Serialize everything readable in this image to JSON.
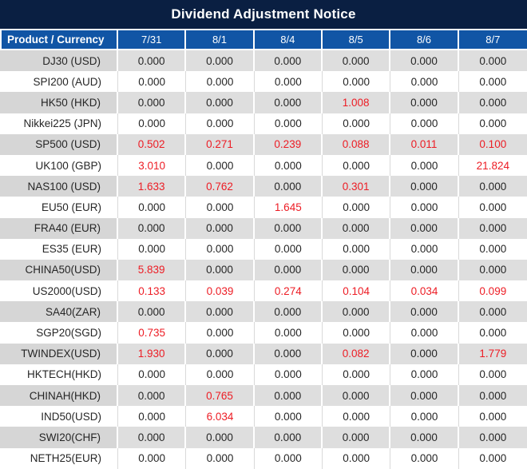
{
  "title": "Dividend Adjustment Notice",
  "colors": {
    "title_bar_bg": "#0a1f42",
    "header_bg": "#1155a5",
    "row_gray": "#dedede",
    "row_gray_product": "#d6d6d6",
    "row_white": "#ffffff",
    "text": "#262626",
    "highlight_red": "#ed1c24"
  },
  "table": {
    "header": [
      "Product / Currency",
      "7/31",
      "8/1",
      "8/4",
      "8/5",
      "8/6",
      "8/7"
    ],
    "zero_value": "0.000",
    "rows": [
      {
        "product": "DJ30 (USD)",
        "values": [
          "0.000",
          "0.000",
          "0.000",
          "0.000",
          "0.000",
          "0.000"
        ]
      },
      {
        "product": "SPI200 (AUD)",
        "values": [
          "0.000",
          "0.000",
          "0.000",
          "0.000",
          "0.000",
          "0.000"
        ]
      },
      {
        "product": "HK50 (HKD)",
        "values": [
          "0.000",
          "0.000",
          "0.000",
          "1.008",
          "0.000",
          "0.000"
        ]
      },
      {
        "product": "Nikkei225 (JPN)",
        "values": [
          "0.000",
          "0.000",
          "0.000",
          "0.000",
          "0.000",
          "0.000"
        ]
      },
      {
        "product": "SP500 (USD)",
        "values": [
          "0.502",
          "0.271",
          "0.239",
          "0.088",
          "0.011",
          "0.100"
        ]
      },
      {
        "product": "UK100 (GBP)",
        "values": [
          "3.010",
          "0.000",
          "0.000",
          "0.000",
          "0.000",
          "21.824"
        ]
      },
      {
        "product": "NAS100 (USD)",
        "values": [
          "1.633",
          "0.762",
          "0.000",
          "0.301",
          "0.000",
          "0.000"
        ]
      },
      {
        "product": "EU50 (EUR)",
        "values": [
          "0.000",
          "0.000",
          "1.645",
          "0.000",
          "0.000",
          "0.000"
        ]
      },
      {
        "product": "FRA40 (EUR)",
        "values": [
          "0.000",
          "0.000",
          "0.000",
          "0.000",
          "0.000",
          "0.000"
        ]
      },
      {
        "product": "ES35 (EUR)",
        "values": [
          "0.000",
          "0.000",
          "0.000",
          "0.000",
          "0.000",
          "0.000"
        ]
      },
      {
        "product": "CHINA50(USD)",
        "values": [
          "5.839",
          "0.000",
          "0.000",
          "0.000",
          "0.000",
          "0.000"
        ]
      },
      {
        "product": "US2000(USD)",
        "values": [
          "0.133",
          "0.039",
          "0.274",
          "0.104",
          "0.034",
          "0.099"
        ]
      },
      {
        "product": "SA40(ZAR)",
        "values": [
          "0.000",
          "0.000",
          "0.000",
          "0.000",
          "0.000",
          "0.000"
        ]
      },
      {
        "product": "SGP20(SGD)",
        "values": [
          "0.735",
          "0.000",
          "0.000",
          "0.000",
          "0.000",
          "0.000"
        ]
      },
      {
        "product": "TWINDEX(USD)",
        "values": [
          "1.930",
          "0.000",
          "0.000",
          "0.082",
          "0.000",
          "1.779"
        ]
      },
      {
        "product": "HKTECH(HKD)",
        "values": [
          "0.000",
          "0.000",
          "0.000",
          "0.000",
          "0.000",
          "0.000"
        ]
      },
      {
        "product": "CHINAH(HKD)",
        "values": [
          "0.000",
          "0.765",
          "0.000",
          "0.000",
          "0.000",
          "0.000"
        ]
      },
      {
        "product": "IND50(USD)",
        "values": [
          "0.000",
          "6.034",
          "0.000",
          "0.000",
          "0.000",
          "0.000"
        ]
      },
      {
        "product": "SWI20(CHF)",
        "values": [
          "0.000",
          "0.000",
          "0.000",
          "0.000",
          "0.000",
          "0.000"
        ]
      },
      {
        "product": "NETH25(EUR)",
        "values": [
          "0.000",
          "0.000",
          "0.000",
          "0.000",
          "0.000",
          "0.000"
        ]
      }
    ]
  }
}
